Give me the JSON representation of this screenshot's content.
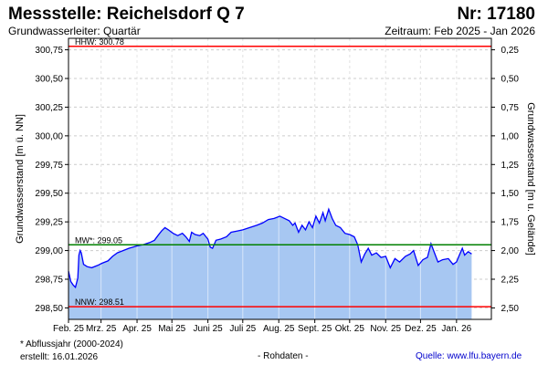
{
  "header": {
    "title": "Messstelle: Reichelsdorf Q 7",
    "number": "Nr: 17180",
    "subtitle": "Grundwasserleiter: Quartär",
    "period": "Zeitraum: Feb 2025 - Jan 2026"
  },
  "footer": {
    "footnote": "* Abflussjahr (2000-2024)",
    "created": "erstellt:  16.01.2026",
    "raw": "- Rohdaten -",
    "source": "Quelle: www.lfu.bayern.de"
  },
  "chart_data": {
    "type": "area",
    "ylabel": "Grundwasserstand [m ü. NN]",
    "y2label": "Grundwasserstand [m u. Gelände]",
    "ylim": [
      298.4,
      300.85
    ],
    "y_ticks": [
      298.5,
      298.75,
      299.0,
      299.25,
      299.5,
      299.75,
      300.0,
      300.25,
      300.5,
      300.75
    ],
    "y_tick_labels": [
      "298,50",
      "298,75",
      "299,00",
      "299,25",
      "299,50",
      "299,75",
      "300,00",
      "300,25",
      "300,50",
      "300,75"
    ],
    "y2_tick_labels": [
      "2,50",
      "2,25",
      "2,00",
      "1,75",
      "1,50",
      "1,25",
      "1,00",
      "0,75",
      "0,50",
      "0,25"
    ],
    "x_range": [
      "2025-02-01",
      "2026-01-31"
    ],
    "x_ticks": [
      "2025-02-01",
      "2025-03-01",
      "2025-04-01",
      "2025-05-01",
      "2025-06-01",
      "2025-07-01",
      "2025-08-01",
      "2025-09-01",
      "2025-10-01",
      "2025-11-01",
      "2025-12-01",
      "2026-01-01"
    ],
    "x_tick_labels": [
      "Feb. 25",
      "Mrz. 25",
      "Apr. 25",
      "Mai 25",
      "Juni 25",
      "Juli 25",
      "Aug. 25",
      "Sept. 25",
      "Okt. 25",
      "Nov. 25",
      "Dez. 25",
      "Jan. 26"
    ],
    "grid": true,
    "reference_lines": [
      {
        "label": "HHW: 300.78",
        "value": 300.78,
        "color": "#ff0000"
      },
      {
        "label": "MW*: 299.05",
        "value": 299.05,
        "color": "#008000"
      },
      {
        "label": "NNW: 298.51",
        "value": 298.51,
        "color": "#ff0000"
      }
    ],
    "series": [
      {
        "color": "#0000ff",
        "fill": "#a7c7f2",
        "points": [
          [
            "2025-02-01",
            298.82
          ],
          [
            "2025-02-03",
            298.73
          ],
          [
            "2025-02-05",
            298.7
          ],
          [
            "2025-02-07",
            298.68
          ],
          [
            "2025-02-09",
            298.76
          ],
          [
            "2025-02-10",
            298.96
          ],
          [
            "2025-02-11",
            299.0
          ],
          [
            "2025-02-12",
            298.98
          ],
          [
            "2025-02-14",
            298.88
          ],
          [
            "2025-02-17",
            298.86
          ],
          [
            "2025-02-21",
            298.85
          ],
          [
            "2025-02-26",
            298.87
          ],
          [
            "2025-03-02",
            298.89
          ],
          [
            "2025-03-07",
            298.91
          ],
          [
            "2025-03-11",
            298.95
          ],
          [
            "2025-03-15",
            298.98
          ],
          [
            "2025-03-20",
            299.0
          ],
          [
            "2025-03-25",
            299.02
          ],
          [
            "2025-04-01",
            299.04
          ],
          [
            "2025-04-06",
            299.05
          ],
          [
            "2025-04-12",
            299.07
          ],
          [
            "2025-04-16",
            299.09
          ],
          [
            "2025-04-19",
            299.13
          ],
          [
            "2025-04-22",
            299.17
          ],
          [
            "2025-04-25",
            299.2
          ],
          [
            "2025-04-28",
            299.18
          ],
          [
            "2025-05-02",
            299.15
          ],
          [
            "2025-05-06",
            299.13
          ],
          [
            "2025-05-10",
            299.15
          ],
          [
            "2025-05-13",
            299.12
          ],
          [
            "2025-05-16",
            299.08
          ],
          [
            "2025-05-18",
            299.16
          ],
          [
            "2025-05-21",
            299.14
          ],
          [
            "2025-05-25",
            299.13
          ],
          [
            "2025-05-28",
            299.15
          ],
          [
            "2025-06-01",
            299.1
          ],
          [
            "2025-06-03",
            299.03
          ],
          [
            "2025-06-05",
            299.02
          ],
          [
            "2025-06-08",
            299.09
          ],
          [
            "2025-06-12",
            299.1
          ],
          [
            "2025-06-17",
            299.12
          ],
          [
            "2025-06-21",
            299.16
          ],
          [
            "2025-06-26",
            299.17
          ],
          [
            "2025-07-01",
            299.18
          ],
          [
            "2025-07-07",
            299.2
          ],
          [
            "2025-07-13",
            299.22
          ],
          [
            "2025-07-18",
            299.24
          ],
          [
            "2025-07-23",
            299.27
          ],
          [
            "2025-07-28",
            299.28
          ],
          [
            "2025-08-02",
            299.3
          ],
          [
            "2025-08-06",
            299.28
          ],
          [
            "2025-08-10",
            299.26
          ],
          [
            "2025-08-13",
            299.22
          ],
          [
            "2025-08-15",
            299.24
          ],
          [
            "2025-08-18",
            299.16
          ],
          [
            "2025-08-21",
            299.22
          ],
          [
            "2025-08-24",
            299.18
          ],
          [
            "2025-08-27",
            299.25
          ],
          [
            "2025-08-30",
            299.2
          ],
          [
            "2025-09-02",
            299.3
          ],
          [
            "2025-09-05",
            299.24
          ],
          [
            "2025-09-08",
            299.33
          ],
          [
            "2025-09-10",
            299.26
          ],
          [
            "2025-09-13",
            299.36
          ],
          [
            "2025-09-16",
            299.28
          ],
          [
            "2025-09-19",
            299.22
          ],
          [
            "2025-09-23",
            299.2
          ],
          [
            "2025-09-27",
            299.15
          ],
          [
            "2025-10-01",
            299.14
          ],
          [
            "2025-10-05",
            299.12
          ],
          [
            "2025-10-08",
            299.05
          ],
          [
            "2025-10-11",
            298.9
          ],
          [
            "2025-10-14",
            298.97
          ],
          [
            "2025-10-17",
            299.02
          ],
          [
            "2025-10-20",
            298.96
          ],
          [
            "2025-10-24",
            298.98
          ],
          [
            "2025-10-28",
            298.94
          ],
          [
            "2025-11-01",
            298.95
          ],
          [
            "2025-11-05",
            298.85
          ],
          [
            "2025-11-09",
            298.93
          ],
          [
            "2025-11-13",
            298.9
          ],
          [
            "2025-11-18",
            298.95
          ],
          [
            "2025-11-22",
            298.97
          ],
          [
            "2025-11-25",
            299.0
          ],
          [
            "2025-11-29",
            298.87
          ],
          [
            "2025-12-03",
            298.92
          ],
          [
            "2025-12-07",
            298.94
          ],
          [
            "2025-12-10",
            299.06
          ],
          [
            "2025-12-13",
            298.98
          ],
          [
            "2025-12-16",
            298.9
          ],
          [
            "2025-12-20",
            298.92
          ],
          [
            "2025-12-25",
            298.93
          ],
          [
            "2025-12-29",
            298.88
          ],
          [
            "2026-01-01",
            298.9
          ],
          [
            "2026-01-03",
            298.95
          ],
          [
            "2026-01-06",
            299.02
          ],
          [
            "2026-01-08",
            298.96
          ],
          [
            "2026-01-11",
            298.99
          ],
          [
            "2026-01-14",
            298.97
          ]
        ]
      }
    ]
  }
}
